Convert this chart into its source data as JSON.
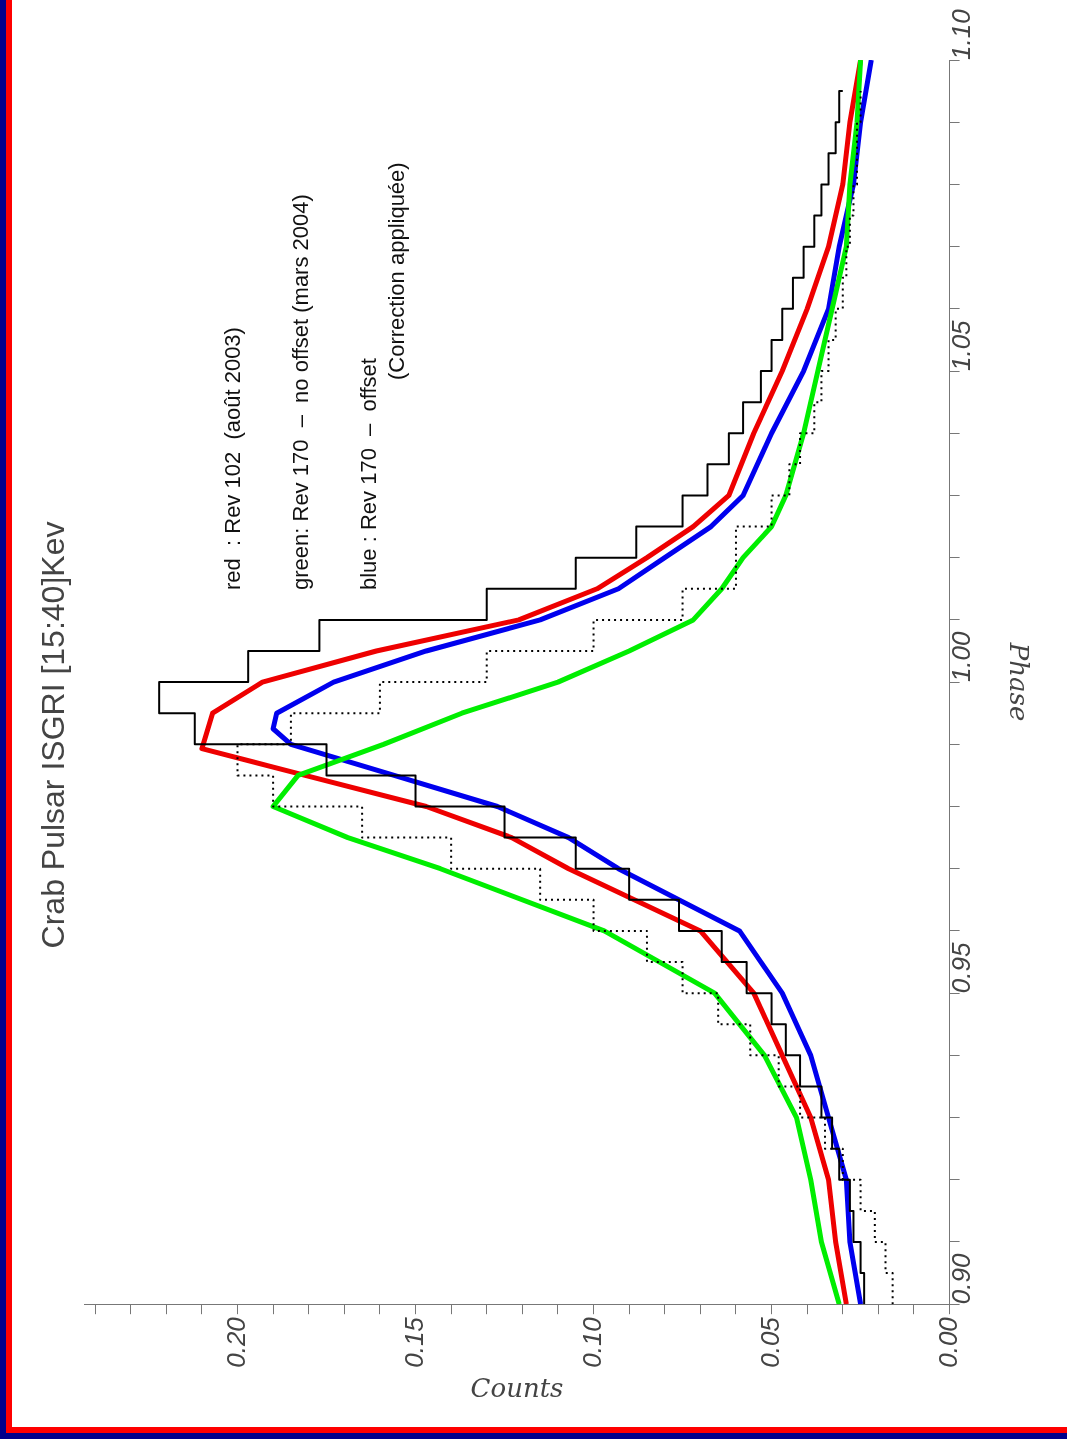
{
  "chart_data": {
    "type": "line",
    "title": "Crab Pulsar ISGRI [15:40]Kev",
    "xlabel": "Counts",
    "ylabel": "Phase",
    "orientation": "horizontal",
    "marker": "none",
    "legend": false,
    "grid": false,
    "annotations": [
      "red  : Rev 102  (août 2003)",
      "green: Rev 170  –  no offset (mars 2004)",
      "blue : Rev 170  –  offset",
      "(Correction appliquée)"
    ],
    "xlim": [
      0.243,
      0
    ],
    "xticks": [
      {
        "value": 0,
        "label": "0.00"
      },
      {
        "value": 0.01,
        "label": null
      },
      {
        "value": 0.02,
        "label": null
      },
      {
        "value": 0.03,
        "label": null
      },
      {
        "value": 0.04,
        "label": null
      },
      {
        "value": 0.05,
        "label": "0.05"
      },
      {
        "value": 0.06,
        "label": null
      },
      {
        "value": 0.07,
        "label": null
      },
      {
        "value": 0.08,
        "label": null
      },
      {
        "value": 0.09,
        "label": null
      },
      {
        "value": 0.1,
        "label": "0.10"
      },
      {
        "value": 0.11,
        "label": null
      },
      {
        "value": 0.12,
        "label": null
      },
      {
        "value": 0.13,
        "label": null
      },
      {
        "value": 0.14,
        "label": null
      },
      {
        "value": 0.15,
        "label": "0.15"
      },
      {
        "value": 0.16,
        "label": null
      },
      {
        "value": 0.17,
        "label": null
      },
      {
        "value": 0.18,
        "label": null
      },
      {
        "value": 0.19,
        "label": null
      },
      {
        "value": 0.2,
        "label": "0.20"
      },
      {
        "value": 0.21,
        "label": null
      },
      {
        "value": 0.22,
        "label": null
      },
      {
        "value": 0.23,
        "label": null
      },
      {
        "value": 0.24,
        "label": null
      }
    ],
    "ylim": [
      0.9,
      1.1
    ],
    "yticks": [
      {
        "value": 0.9,
        "label": "0.90"
      },
      {
        "value": 0.91,
        "label": null
      },
      {
        "value": 0.92,
        "label": null
      },
      {
        "value": 0.93,
        "label": null
      },
      {
        "value": 0.94,
        "label": null
      },
      {
        "value": 0.95,
        "label": "0.95"
      },
      {
        "value": 0.96,
        "label": null
      },
      {
        "value": 0.97,
        "label": null
      },
      {
        "value": 0.98,
        "label": null
      },
      {
        "value": 0.99,
        "label": null
      },
      {
        "value": 1.0,
        "label": "1.00"
      },
      {
        "value": 1.01,
        "label": null
      },
      {
        "value": 1.02,
        "label": null
      },
      {
        "value": 1.03,
        "label": null
      },
      {
        "value": 1.04,
        "label": null
      },
      {
        "value": 1.05,
        "label": "1.05"
      },
      {
        "value": 1.06,
        "label": null
      },
      {
        "value": 1.07,
        "label": null
      },
      {
        "value": 1.08,
        "label": null
      },
      {
        "value": 1.09,
        "label": null
      },
      {
        "value": 1.1,
        "label": "1.10"
      }
    ],
    "series": [
      {
        "type": "step",
        "color": "#000000",
        "line_style": "dotted",
        "x": [
          0.9,
          0.905,
          0.91,
          0.915,
          0.92,
          0.925,
          0.93,
          0.935,
          0.94,
          0.945,
          0.95,
          0.955,
          0.96,
          0.965,
          0.97,
          0.975,
          0.98,
          0.985,
          0.99,
          0.995,
          1.0,
          1.005,
          1.01,
          1.015,
          1.02,
          1.025,
          1.03,
          1.035,
          1.04,
          1.045,
          1.05,
          1.055,
          1.06,
          1.065,
          1.07,
          1.075,
          1.08,
          1.085,
          1.09,
          1.095
        ],
        "values": [
          0.016,
          0.018,
          0.021,
          0.025,
          0.03,
          0.035,
          0.042,
          0.048,
          0.056,
          0.065,
          0.075,
          0.085,
          0.1,
          0.115,
          0.14,
          0.165,
          0.19,
          0.2,
          0.185,
          0.16,
          0.13,
          0.1,
          0.075,
          0.06,
          0.06,
          0.05,
          0.045,
          0.042,
          0.038,
          0.036,
          0.034,
          0.032,
          0.03,
          0.029,
          0.028,
          0.027,
          0.026,
          0.026,
          0.025,
          0.025
        ]
      },
      {
        "type": "step",
        "color": "#000000",
        "line_style": "solid",
        "x": [
          0.9,
          0.905,
          0.91,
          0.915,
          0.92,
          0.925,
          0.93,
          0.935,
          0.94,
          0.945,
          0.95,
          0.955,
          0.96,
          0.965,
          0.97,
          0.975,
          0.98,
          0.985,
          0.99,
          0.995,
          1.0,
          1.005,
          1.01,
          1.015,
          1.02,
          1.025,
          1.03,
          1.035,
          1.04,
          1.045,
          1.05,
          1.055,
          1.06,
          1.065,
          1.07,
          1.075,
          1.08,
          1.085,
          1.09,
          1.095
        ],
        "values": [
          0.024,
          0.025,
          0.027,
          0.028,
          0.031,
          0.033,
          0.036,
          0.042,
          0.046,
          0.05,
          0.057,
          0.064,
          0.076,
          0.09,
          0.105,
          0.125,
          0.15,
          0.175,
          0.212,
          0.222,
          0.197,
          0.177,
          0.13,
          0.105,
          0.088,
          0.075,
          0.068,
          0.062,
          0.058,
          0.053,
          0.05,
          0.047,
          0.044,
          0.041,
          0.038,
          0.036,
          0.034,
          0.032,
          0.031,
          0.03
        ]
      },
      {
        "type": "line",
        "color": "#00ee00",
        "x": [
          0.9,
          0.91,
          0.92,
          0.93,
          0.94,
          0.95,
          0.96,
          0.97,
          0.975,
          0.98,
          0.985,
          0.99,
          0.995,
          1.0,
          1.005,
          1.01,
          1.015,
          1.02,
          1.025,
          1.03,
          1.04,
          1.05,
          1.06,
          1.07,
          1.08,
          1.09,
          1.1
        ],
        "values": [
          0.031,
          0.036,
          0.039,
          0.043,
          0.052,
          0.066,
          0.097,
          0.143,
          0.169,
          0.19,
          0.183,
          0.159,
          0.137,
          0.11,
          0.09,
          0.072,
          0.064,
          0.058,
          0.05,
          0.046,
          0.041,
          0.037,
          0.033,
          0.029,
          0.028,
          0.026,
          0.025
        ]
      },
      {
        "type": "line",
        "color": "#0000ee",
        "x": [
          0.9,
          0.91,
          0.92,
          0.93,
          0.94,
          0.95,
          0.96,
          0.97,
          0.975,
          0.98,
          0.985,
          0.99,
          0.9925,
          0.995,
          1.0,
          1.005,
          1.01,
          1.015,
          1.02,
          1.025,
          1.03,
          1.04,
          1.05,
          1.06,
          1.07,
          1.08,
          1.09,
          1.1
        ],
        "values": [
          0.025,
          0.028,
          0.029,
          0.034,
          0.039,
          0.047,
          0.059,
          0.093,
          0.107,
          0.127,
          0.156,
          0.185,
          0.19,
          0.189,
          0.173,
          0.147,
          0.115,
          0.093,
          0.08,
          0.067,
          0.058,
          0.05,
          0.041,
          0.034,
          0.031,
          0.027,
          0.025,
          0.022
        ]
      },
      {
        "type": "line",
        "color": "#ee0000",
        "x": [
          0.9,
          0.91,
          0.92,
          0.93,
          0.94,
          0.95,
          0.96,
          0.97,
          0.975,
          0.98,
          0.985,
          0.9893,
          0.995,
          1.0,
          1.005,
          1.01,
          1.015,
          1.02,
          1.025,
          1.03,
          1.04,
          1.05,
          1.06,
          1.07,
          1.08,
          1.09,
          1.1
        ],
        "values": [
          0.029,
          0.032,
          0.034,
          0.039,
          0.047,
          0.055,
          0.07,
          0.107,
          0.123,
          0.147,
          0.181,
          0.21,
          0.207,
          0.193,
          0.161,
          0.121,
          0.099,
          0.085,
          0.072,
          0.062,
          0.055,
          0.047,
          0.04,
          0.034,
          0.03,
          0.028,
          0.025
        ]
      }
    ]
  }
}
